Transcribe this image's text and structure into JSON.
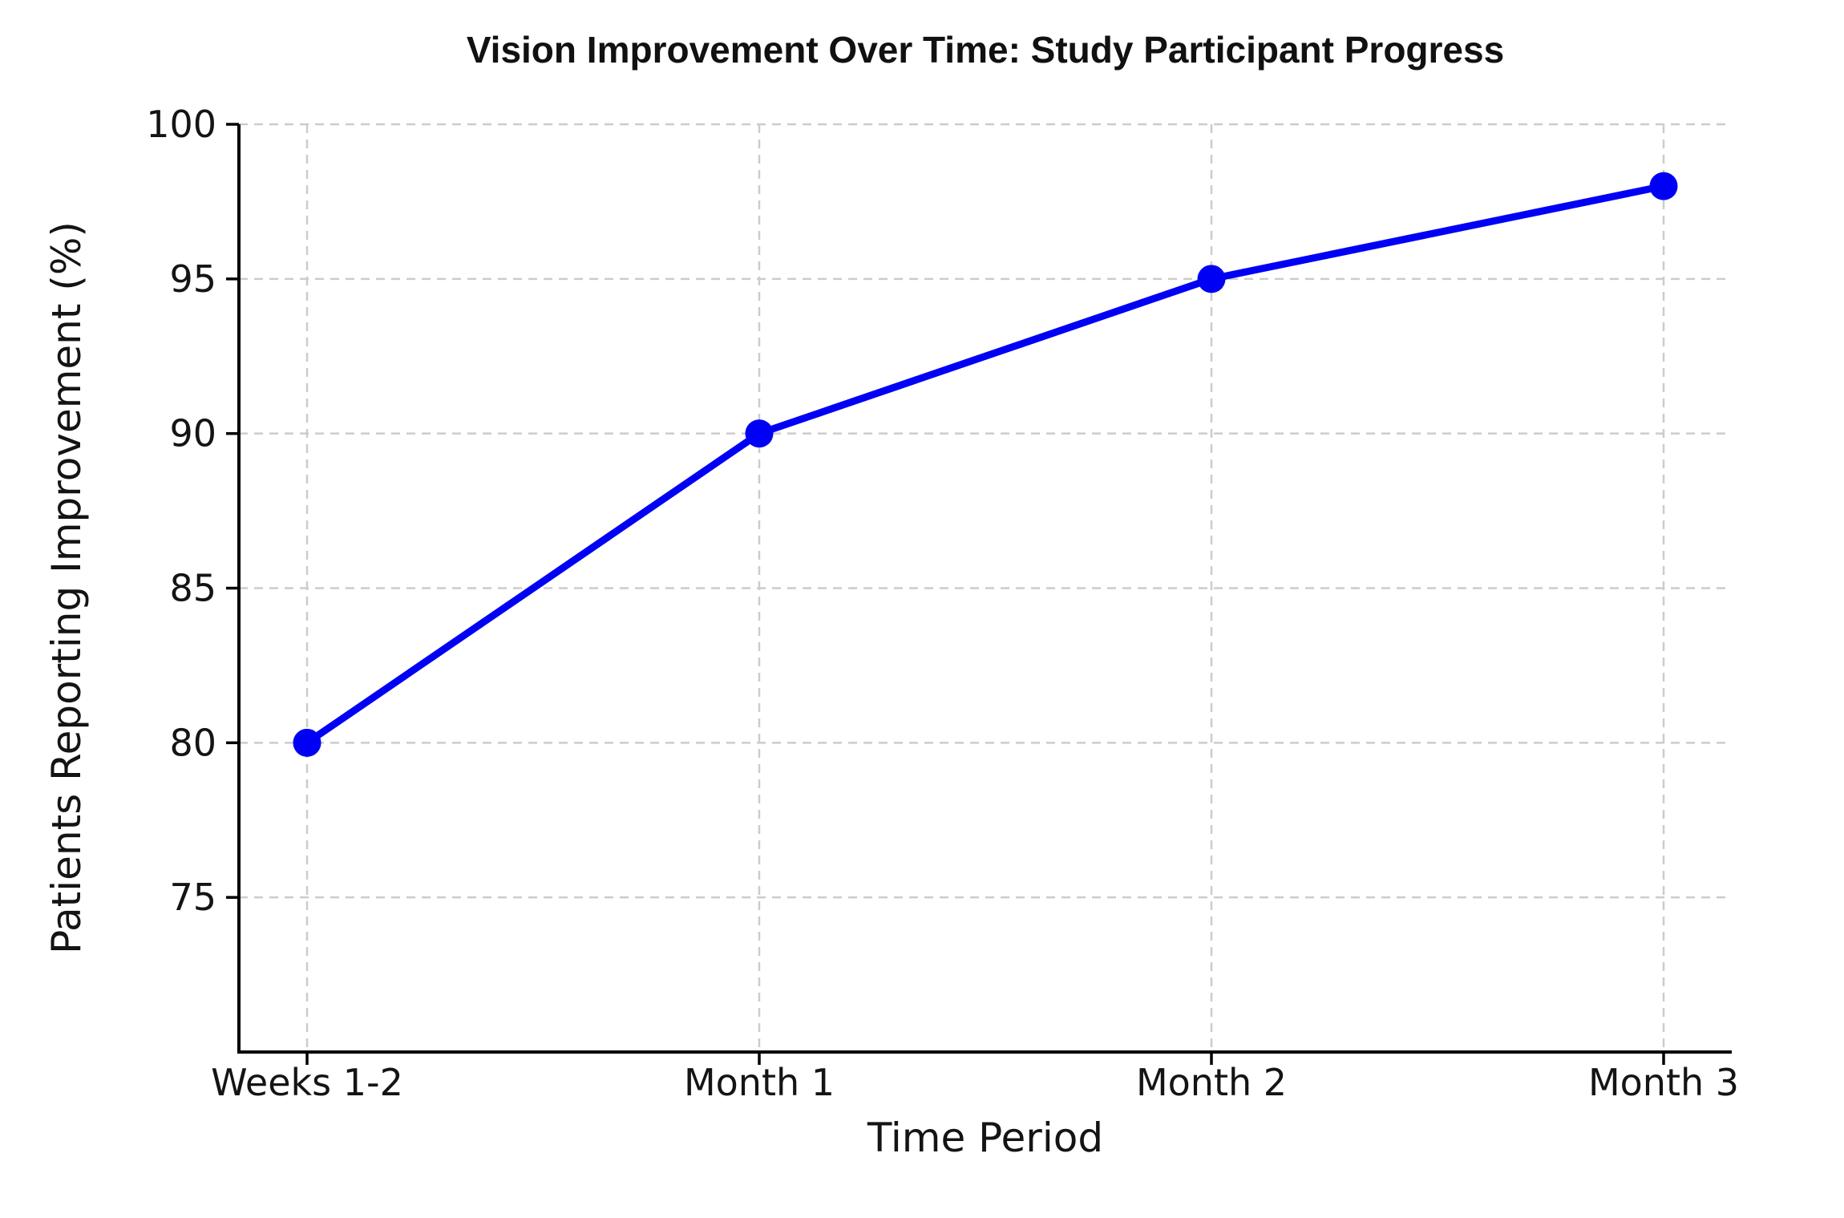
{
  "chart_data": {
    "type": "line",
    "title": "Vision Improvement Over Time: Study Participant Progress",
    "xlabel": "Time Period",
    "ylabel": "Patients Reporting Improvement (%)",
    "categories": [
      "Weeks 1-2",
      "Month 1",
      "Month 2",
      "Month 3"
    ],
    "values": [
      80,
      90,
      95,
      98
    ],
    "yticks": [
      75,
      80,
      85,
      90,
      95,
      100
    ],
    "ylim": [
      70,
      100
    ],
    "grid": true,
    "grid_style": "dashed",
    "legend": "none",
    "line_color": "#0000f5",
    "marker": "circle",
    "marker_color": "#0000f5",
    "grid_color": "#cccccc",
    "axis_color": "#000000",
    "text_color": "#141414",
    "background_color": "#ffffff"
  }
}
